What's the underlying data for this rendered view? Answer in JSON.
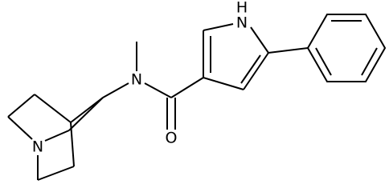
{
  "atoms": {
    "quinuclidine_n": "N",
    "amide_n": "N",
    "oxygen": "O",
    "pyrrole_n": "N",
    "pyrrole_h": "H"
  }
}
